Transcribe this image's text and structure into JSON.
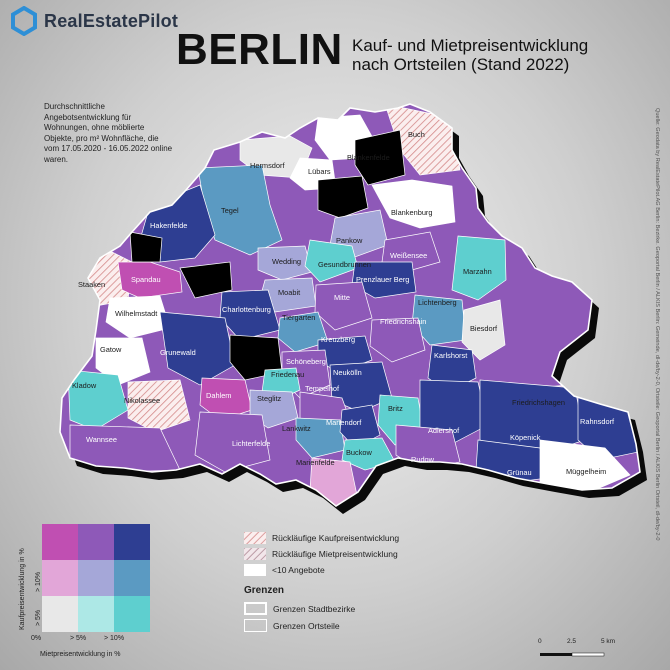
{
  "brand": {
    "name": "RealEstatePilot",
    "icon": "hexagon-logo-icon"
  },
  "title": {
    "main": "BERLIN",
    "line1": "Kauf- und Mietpreisentwicklung",
    "line2": "nach Ortsteilen (Stand 2022)"
  },
  "description": "Durchschnittliche Angebotsentwicklung für Wohnungen, ohne möblierte Objekte, pro m² Wohnfläche, die vom 17.05.2020 - 16.05.2022 online waren.",
  "source": "Quelle: Geodata by RealEstatePilot.AG  Berlin: Bezirke. Geoportal Berlin / ALKIS Berlin: Gemeinde, dl-de/by-2-0, Ortsteile: Geoportal Berlin / ALKIS Berlin Ortsteil, dl-de/by-2-0",
  "legend": {
    "bivariate": {
      "x_title": "Mietpreisentwicklung in %",
      "y_title": "Kaufpreisentwicklung in %",
      "x_ticks": [
        "0%",
        "> 5%",
        "> 10%"
      ],
      "y_ticks": [
        "> 5%",
        "> 10%"
      ],
      "colors": [
        [
          "#c04fb2",
          "#8e59b8",
          "#2e3e92"
        ],
        [
          "#e2a6d8",
          "#a5a7d8",
          "#5b9ac2"
        ],
        [
          "#e8e8e8",
          "#ade8e6",
          "#5ecfcf"
        ]
      ]
    },
    "items": [
      {
        "label": "Rückläufige Kaufpreisentwicklung",
        "swatch": "hatch-pink"
      },
      {
        "label": "Rückläufige Mietpreisentwicklung",
        "swatch": "hatch-mauve"
      },
      {
        "label": "<10 Angebote",
        "swatch": "white"
      }
    ],
    "borders_heading": "Grenzen",
    "borders": [
      {
        "label": "Grenzen Stadtbezirke",
        "swatch": "thick"
      },
      {
        "label": "Grenzen Ortsteile",
        "swatch": "thin"
      }
    ],
    "scale": {
      "ticks": [
        "0",
        "2.5",
        "5 km"
      ]
    }
  },
  "districts": [
    {
      "name": "Buch",
      "color": "hatch-pink"
    },
    {
      "name": "Hermsdorf",
      "color": "#e8e8e8"
    },
    {
      "name": "Blankenfelde",
      "color": "#ffffff"
    },
    {
      "name": "Lübars",
      "color": "#ffffff"
    },
    {
      "name": "Blankenburg",
      "color": "#ffffff"
    },
    {
      "name": "Tegel",
      "color": "#5b9ac2"
    },
    {
      "name": "Hakenfelde",
      "color": "#2e3e92"
    },
    {
      "name": "Pankow",
      "color": "#a5a7d8"
    },
    {
      "name": "Weißensee",
      "color": "#8e59b8"
    },
    {
      "name": "Wedding",
      "color": "#a5a7d8"
    },
    {
      "name": "Gesundbrunnen",
      "color": "#5ecfcf"
    },
    {
      "name": "Marzahn",
      "color": "#5ecfcf"
    },
    {
      "name": "Staaken",
      "color": "hatch-pink"
    },
    {
      "name": "Spandau",
      "color": "#c04fb2"
    },
    {
      "name": "Prenzlauer Berg",
      "color": "#2e3e92"
    },
    {
      "name": "Moabit",
      "color": "#a5a7d8"
    },
    {
      "name": "Mitte",
      "color": "#8e59b8"
    },
    {
      "name": "Lichtenberg",
      "color": "#5b9ac2"
    },
    {
      "name": "Wilhelmstadt",
      "color": "#ffffff"
    },
    {
      "name": "Charlottenburg",
      "color": "#2e3e92"
    },
    {
      "name": "Tiergarten",
      "color": "#5b9ac2"
    },
    {
      "name": "Friedrichshain",
      "color": "#8e59b8"
    },
    {
      "name": "Biesdorf",
      "color": "#e8e8e8"
    },
    {
      "name": "Gatow",
      "color": "#ffffff"
    },
    {
      "name": "Grunewald",
      "color": "#2e3e92"
    },
    {
      "name": "Kreuzberg",
      "color": "#2e3e92"
    },
    {
      "name": "Karlshorst",
      "color": "#2e3e92"
    },
    {
      "name": "Schöneberg",
      "color": "#8e59b8"
    },
    {
      "name": "Kladow",
      "color": "#5ecfcf"
    },
    {
      "name": "Friedenau",
      "color": "#5ecfcf"
    },
    {
      "name": "Neukölln",
      "color": "#2e3e92"
    },
    {
      "name": "Tempelhof",
      "color": "#8e59b8"
    },
    {
      "name": "Nikolassee",
      "color": "hatch-pink"
    },
    {
      "name": "Dahlem",
      "color": "#c04fb2"
    },
    {
      "name": "Steglitz",
      "color": "#a5a7d8"
    },
    {
      "name": "Friedrichshagen",
      "color": "#e2a6d8"
    },
    {
      "name": "Britz",
      "color": "#5ecfcf"
    },
    {
      "name": "Lankwitz",
      "color": "#5b9ac2"
    },
    {
      "name": "Mariendorf",
      "color": "#2e3e92"
    },
    {
      "name": "Adlershof",
      "color": "#2e3e92"
    },
    {
      "name": "Köpenick",
      "color": "#2e3e92"
    },
    {
      "name": "Rahnsdorf",
      "color": "#2e3e92"
    },
    {
      "name": "Wannsee",
      "color": "#8e59b8"
    },
    {
      "name": "Lichterfelde",
      "color": "#8e59b8"
    },
    {
      "name": "Buckow",
      "color": "#5ecfcf"
    },
    {
      "name": "Rudow",
      "color": "#8e59b8"
    },
    {
      "name": "Grünau",
      "color": "#2e3e92"
    },
    {
      "name": "Marienfelde",
      "color": "#e2a6d8"
    },
    {
      "name": "Müggelheim",
      "color": "#ffffff"
    }
  ]
}
